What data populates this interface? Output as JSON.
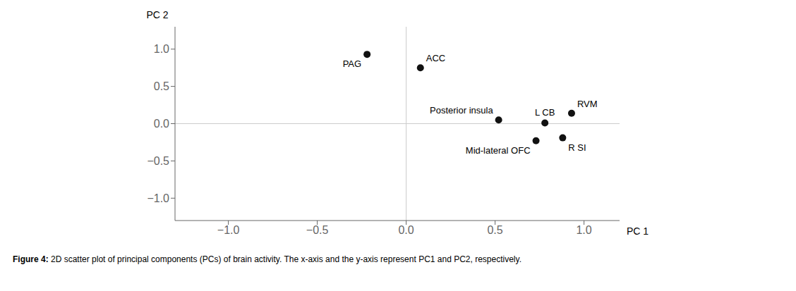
{
  "chart_data": {
    "type": "scatter",
    "x": [
      -0.22,
      0.08,
      0.52,
      0.78,
      0.93,
      0.73,
      0.88
    ],
    "y": [
      0.93,
      0.75,
      0.05,
      0.01,
      0.14,
      -0.23,
      -0.19
    ],
    "labels": [
      "PAG",
      "ACC",
      "Posterior insula",
      "L CB",
      "RVM",
      "Mid-lateral OFC",
      "R SI"
    ],
    "color": "#111111",
    "xlim": [
      -1.3,
      1.2
    ],
    "ylim": [
      -1.3,
      1.3
    ],
    "xticks": [
      {
        "value": -1.0,
        "label": "−1.0"
      },
      {
        "value": -0.5,
        "label": "−0.5"
      },
      {
        "value": 0,
        "label": "0.0"
      },
      0.5,
      {
        "value": 1.0,
        "label": "1.0"
      }
    ],
    "yticks": [
      {
        "value": -1.0,
        "label": "−1.0"
      },
      {
        "value": -0.5,
        "label": "−0.5"
      },
      {
        "value": 0,
        "label": "0.0"
      },
      0.5,
      {
        "value": 1.0,
        "label": "1.0"
      }
    ],
    "xlabel": "PC 1",
    "ylabel": "PC 2",
    "caption_label": "Figure 4:",
    "caption": "2D scatter plot of principal components (PCs) of brain activity. The x-axis and the y-axis represent PC1 and PC2, respectively.",
    "grid": false
  }
}
